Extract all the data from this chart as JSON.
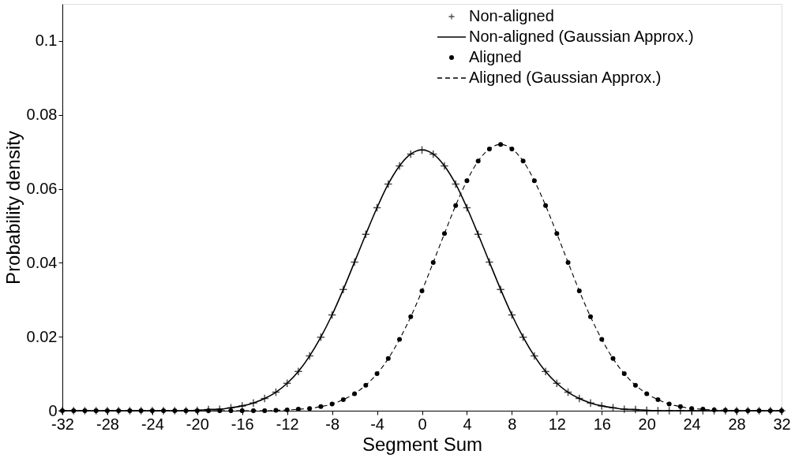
{
  "chart_data": {
    "type": "line",
    "xlabel": "Segment Sum",
    "ylabel": "Probability density",
    "x": [
      -32,
      -31,
      -30,
      -29,
      -28,
      -27,
      -26,
      -25,
      -24,
      -23,
      -22,
      -21,
      -20,
      -19,
      -18,
      -17,
      -16,
      -15,
      -14,
      -13,
      -12,
      -11,
      -10,
      -9,
      -8,
      -7,
      -6,
      -5,
      -4,
      -3,
      -2,
      -1,
      0,
      1,
      2,
      3,
      4,
      5,
      6,
      7,
      8,
      9,
      10,
      11,
      12,
      13,
      14,
      15,
      16,
      17,
      18,
      19,
      20,
      21,
      22,
      23,
      24,
      25,
      26,
      27,
      28,
      29,
      30,
      31,
      32
    ],
    "xlim": [
      -32,
      32
    ],
    "xticks": [
      -32,
      -28,
      -24,
      -20,
      -16,
      -12,
      -8,
      -4,
      0,
      4,
      8,
      12,
      16,
      20,
      24,
      28,
      32
    ],
    "ylim": [
      0,
      0.11
    ],
    "yticks": [
      0,
      0.02,
      0.04,
      0.06,
      0.08,
      0.1
    ],
    "grid": false,
    "legend": "top right",
    "series": [
      {
        "name": "Non-aligned",
        "type": "scatter",
        "marker": "cross",
        "color": "#000000",
        "values": [
          0,
          0,
          0,
          0,
          0,
          0,
          0,
          0,
          0,
          0,
          0,
          0,
          0.0001,
          0.0003,
          0.0004,
          0.0008,
          0.0013,
          0.0021,
          0.0033,
          0.005,
          0.0074,
          0.0106,
          0.0148,
          0.0199,
          0.0259,
          0.0328,
          0.0402,
          0.0477,
          0.0549,
          0.0613,
          0.0662,
          0.0694,
          0.0705,
          0.0694,
          0.0662,
          0.0613,
          0.0549,
          0.0477,
          0.0402,
          0.0328,
          0.0259,
          0.0199,
          0.0148,
          0.0106,
          0.0074,
          0.005,
          0.0033,
          0.0021,
          0.0013,
          0.0008,
          0.0004,
          0.0003,
          0.0001,
          0,
          0,
          0,
          0,
          0,
          0,
          0,
          0,
          0,
          0,
          0,
          0
        ]
      },
      {
        "name": "Non-aligned (Gaussian Approx.)",
        "type": "line",
        "line_style": "solid",
        "color": "#000000",
        "values": [
          0,
          0,
          0,
          0,
          0,
          0,
          0,
          0,
          0,
          0,
          0,
          0,
          0.0001,
          0.0003,
          0.0004,
          0.0008,
          0.0013,
          0.0021,
          0.0033,
          0.005,
          0.0074,
          0.0106,
          0.0148,
          0.0199,
          0.0259,
          0.0328,
          0.0402,
          0.0477,
          0.0549,
          0.0613,
          0.0662,
          0.0694,
          0.0705,
          0.0694,
          0.0662,
          0.0613,
          0.0549,
          0.0477,
          0.0402,
          0.0328,
          0.0259,
          0.0199,
          0.0148,
          0.0106,
          0.0074,
          0.005,
          0.0033,
          0.0021,
          0.0013,
          0.0008,
          0.0004,
          0.0003,
          0.0001,
          0,
          0,
          0,
          0,
          0,
          0,
          0,
          0,
          0,
          0,
          0,
          0
        ]
      },
      {
        "name": "Aligned",
        "type": "scatter",
        "marker": "circle",
        "color": "#000000",
        "values": [
          0,
          0,
          0,
          0,
          0,
          0,
          0,
          0,
          0,
          0,
          0,
          0,
          0,
          0,
          0,
          0,
          0,
          0,
          0,
          0.0001,
          0.0002,
          0.0004,
          0.0006,
          0.0011,
          0.0018,
          0.003,
          0.0046,
          0.0069,
          0.01,
          0.0141,
          0.0193,
          0.0254,
          0.0324,
          0.0401,
          0.0479,
          0.0555,
          0.0622,
          0.0675,
          0.0708,
          0.072,
          0.0708,
          0.0675,
          0.0622,
          0.0555,
          0.0479,
          0.0401,
          0.0324,
          0.0254,
          0.0193,
          0.0141,
          0.01,
          0.0069,
          0.0046,
          0.003,
          0.0018,
          0.0011,
          0.0006,
          0.0004,
          0.0002,
          0.0001,
          0,
          0,
          0,
          0,
          0
        ]
      },
      {
        "name": "Aligned (Gaussian Approx.)",
        "type": "line",
        "line_style": "dashed",
        "color": "#000000",
        "values": [
          0,
          0,
          0,
          0,
          0,
          0,
          0,
          0,
          0,
          0,
          0,
          0,
          0,
          0,
          0,
          0,
          0,
          0,
          0,
          0.0001,
          0.0002,
          0.0004,
          0.0006,
          0.0011,
          0.0018,
          0.003,
          0.0046,
          0.0069,
          0.01,
          0.0141,
          0.0193,
          0.0254,
          0.0324,
          0.0401,
          0.0479,
          0.0555,
          0.0622,
          0.0675,
          0.0708,
          0.072,
          0.0708,
          0.0675,
          0.0622,
          0.0555,
          0.0479,
          0.0401,
          0.0324,
          0.0254,
          0.0193,
          0.0141,
          0.01,
          0.0069,
          0.0046,
          0.003,
          0.0018,
          0.0011,
          0.0006,
          0.0004,
          0.0002,
          0.0001,
          0,
          0,
          0,
          0,
          0
        ]
      }
    ]
  }
}
